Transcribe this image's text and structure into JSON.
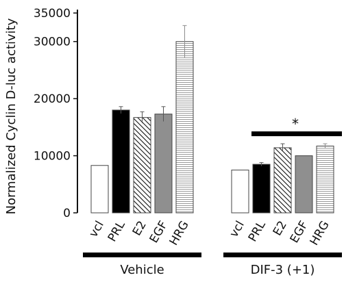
{
  "chart_data": {
    "type": "bar",
    "ylabel": "Normalized Cyclin D-luc activity",
    "xlabel": "",
    "ylim": [
      0,
      35000
    ],
    "yticks": [
      {
        "value": 0,
        "label": "0"
      },
      {
        "value": 10000,
        "label": "10000"
      },
      {
        "value": 20000,
        "label": "20000"
      },
      {
        "value": 30000,
        "label": "30000"
      },
      {
        "value": 35000,
        "label": "35000"
      }
    ],
    "groups": [
      {
        "name": "Vehicle",
        "categories": [
          "vcl",
          "PRL",
          "E2",
          "EGF",
          "HRG"
        ],
        "values": [
          8300,
          18000,
          16700,
          17300,
          30000
        ],
        "errors": [
          0,
          600,
          1000,
          1300,
          2800
        ]
      },
      {
        "name": "DIF-3 (+1)",
        "categories": [
          "vcl",
          "PRL",
          "E2",
          "EGF",
          "HRG"
        ],
        "values": [
          7500,
          8500,
          11400,
          10000,
          11700
        ],
        "errors": [
          0,
          300,
          700,
          0,
          400
        ]
      }
    ],
    "fills": [
      "white",
      "black",
      "diagonal-hatch",
      "gray",
      "horizontal-lines"
    ],
    "annotation": {
      "text": "*",
      "group": "DIF-3 (+1)",
      "from_index": 1,
      "to_index": 4
    },
    "grid": false,
    "legend": "none"
  }
}
